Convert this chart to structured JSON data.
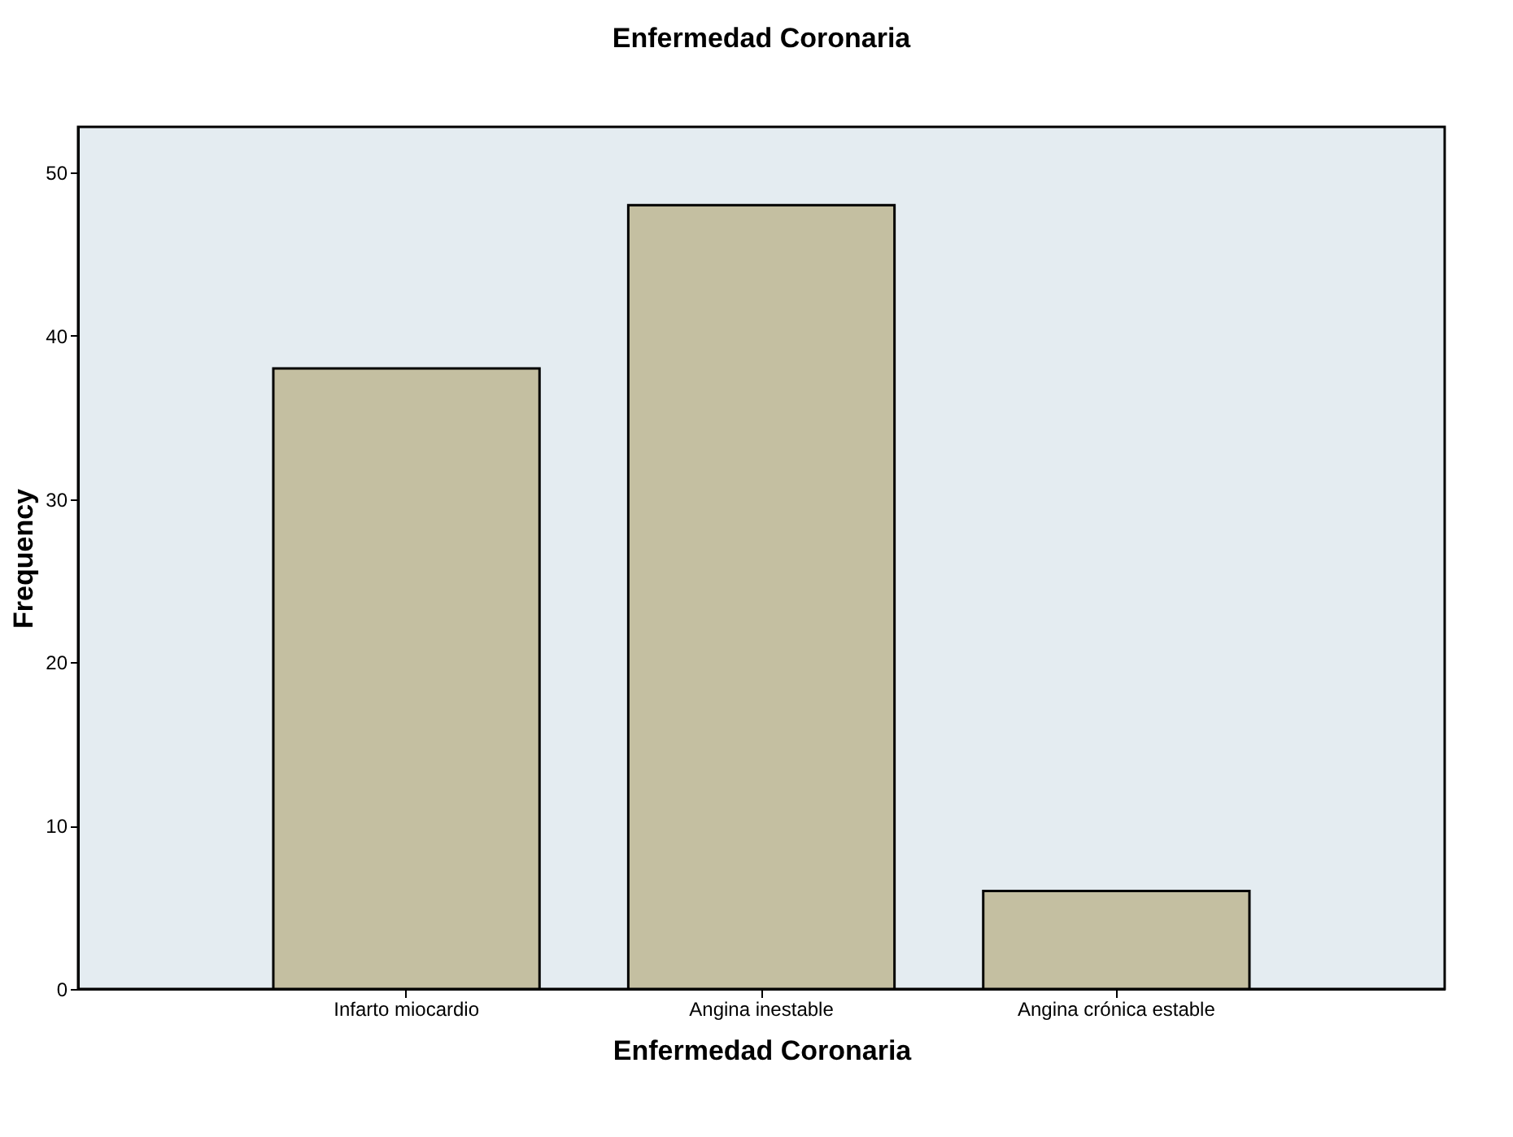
{
  "chart_data": {
    "type": "bar",
    "title": "Enfermedad Coronaria",
    "xlabel": "Enfermedad Coronaria",
    "ylabel": "Frequency",
    "categories": [
      "Infarto miocardio",
      "Angina inestable",
      "Angina crónica estable"
    ],
    "values": [
      38,
      48,
      6
    ],
    "color": "#c4bfa1",
    "ylim": [
      0,
      52.8
    ],
    "yticks": [
      0,
      10,
      20,
      30,
      40,
      50
    ],
    "grid": false
  }
}
